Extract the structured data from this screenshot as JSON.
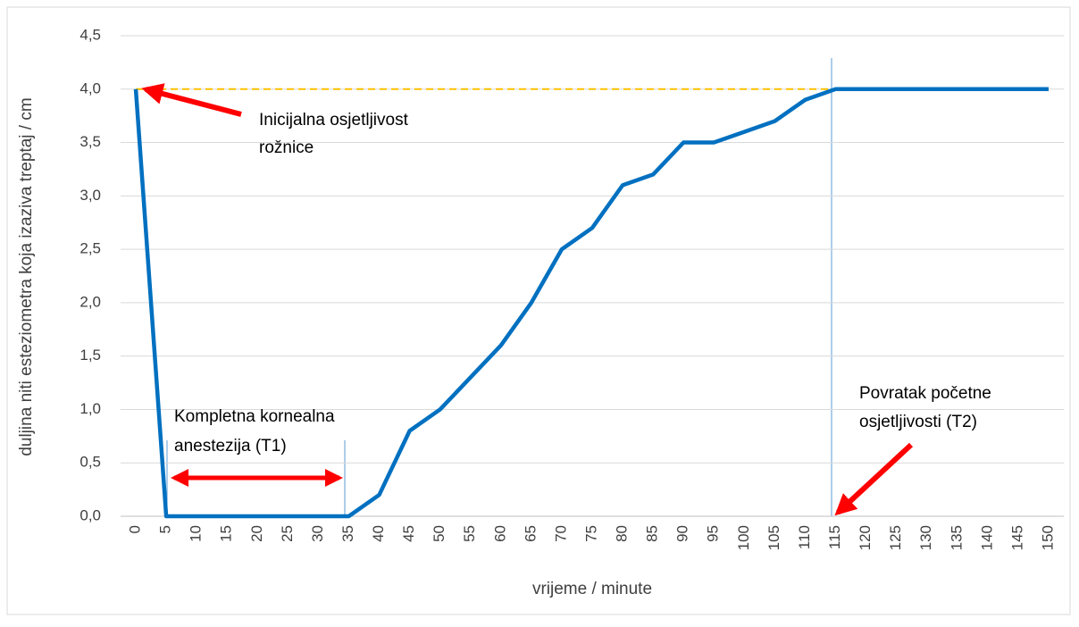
{
  "chart_data": {
    "type": "line",
    "xlabel": "vrijeme / minute",
    "ylabel": "duljina niti esteziometra koja izaziva treptaj / cm",
    "categories": [
      "0",
      "5",
      "10",
      "15",
      "20",
      "25",
      "30",
      "35",
      "40",
      "45",
      "50",
      "55",
      "60",
      "65",
      "70",
      "75",
      "80",
      "85",
      "90",
      "95",
      "100",
      "105",
      "110",
      "115",
      "120",
      "125",
      "130",
      "135",
      "140",
      "145",
      "150"
    ],
    "series": [
      {
        "color": "#0070c0",
        "values": [
          4.0,
          0,
          0,
          0,
          0,
          0,
          0,
          0,
          0.2,
          0.8,
          1.0,
          1.3,
          1.6,
          2.0,
          2.5,
          2.7,
          3.1,
          3.2,
          3.5,
          3.5,
          3.6,
          3.7,
          3.9,
          4.0,
          4.0,
          4.0,
          4.0,
          4.0,
          4.0,
          4.0,
          4.0
        ]
      },
      {
        "color": "#ffc000",
        "dashed": true,
        "values": [
          4.0,
          4.0,
          4.0,
          4.0,
          4.0,
          4.0,
          4.0,
          4.0,
          4.0,
          4.0,
          4.0,
          4.0,
          4.0,
          4.0,
          4.0,
          4.0,
          4.0,
          4.0,
          4.0,
          4.0,
          4.0,
          4.0,
          4.0,
          4.0,
          null,
          null,
          null,
          null,
          null,
          null,
          null
        ]
      }
    ],
    "ylim": [
      0,
      4.5
    ],
    "yticks": [
      {
        "value": 0,
        "label": "0,0"
      },
      {
        "value": 0.5,
        "label": "0,5"
      },
      {
        "value": 1,
        "label": "1,0"
      },
      {
        "value": 1.5,
        "label": "1,5"
      },
      {
        "value": 2,
        "label": "2,0"
      },
      {
        "value": 2.5,
        "label": "2,5"
      },
      {
        "value": 3,
        "label": "3,0"
      },
      {
        "value": 3.5,
        "label": "3,5"
      },
      {
        "value": 4,
        "label": "4,0"
      },
      {
        "value": 4.5,
        "label": "4,5"
      }
    ],
    "grid": true,
    "annotations": [
      [
        "Inicijalna osjetljivost",
        "rožnice"
      ],
      [
        "Kompletna kornealna",
        "anestezija (T1)"
      ],
      [
        "Povratak početne",
        "osjetljivosti (T2)"
      ]
    ]
  }
}
